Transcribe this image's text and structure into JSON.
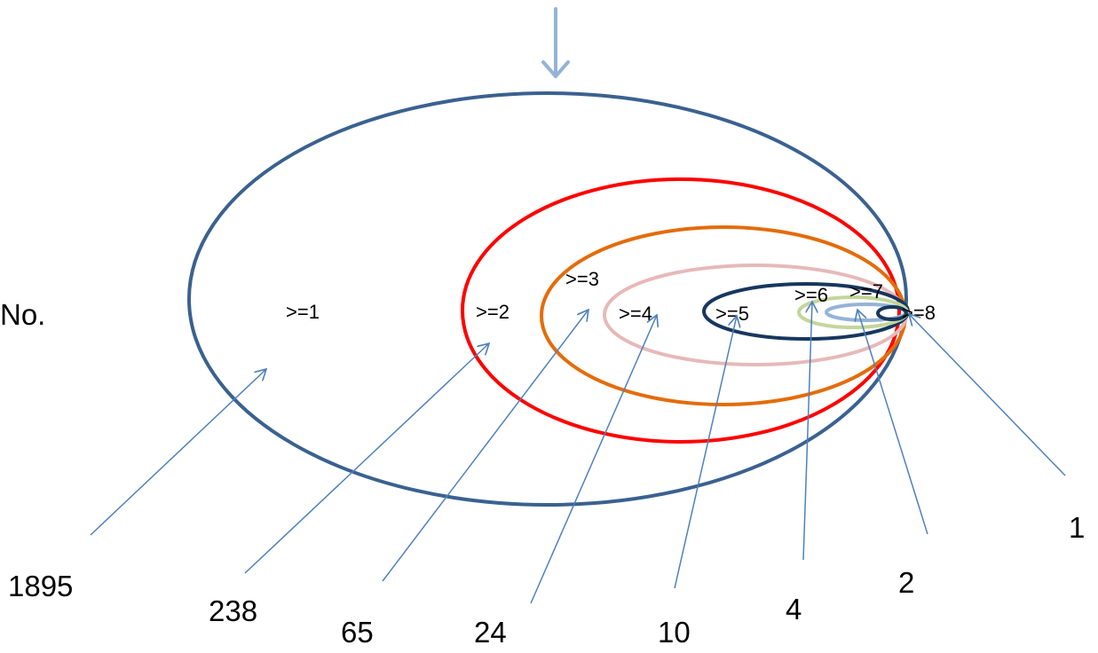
{
  "side_label": "No.",
  "colors": {
    "top_arrow": "#95b3d7",
    "pointer": "#4f81bd",
    "ring_1": "#3a6190",
    "ring_2": "#ff0000",
    "ring_3": "#e46c0a",
    "ring_4": "#e6b9b8",
    "ring_5": "#17375e",
    "ring_6": "#c3d69b",
    "ring_7": "#95b3d7",
    "ring_8": "#17375e"
  },
  "rings": [
    {
      "id": "1",
      "label": ">=1",
      "count": "1895",
      "color_key": "ring_1"
    },
    {
      "id": "2",
      "label": ">=2",
      "count": "238",
      "color_key": "ring_2"
    },
    {
      "id": "3",
      "label": ">=3",
      "count": "65",
      "color_key": "ring_3"
    },
    {
      "id": "4",
      "label": ">=4",
      "count": "24",
      "color_key": "ring_4"
    },
    {
      "id": "5",
      "label": ">=5",
      "count": "10",
      "color_key": "ring_5"
    },
    {
      "id": "6",
      "label": ">=6",
      "count": "4",
      "color_key": "ring_6"
    },
    {
      "id": "7",
      "label": ">=7",
      "count": "2",
      "color_key": "ring_7"
    },
    {
      "id": "8",
      "label": ">=8",
      "count": "1",
      "color_key": "ring_8"
    }
  ]
}
